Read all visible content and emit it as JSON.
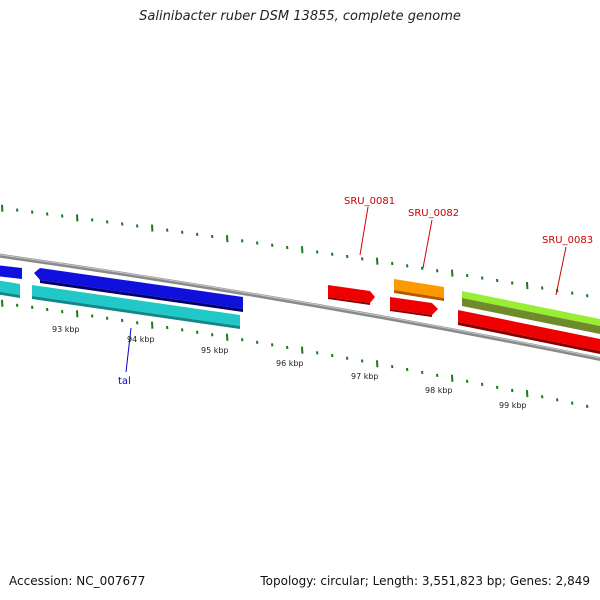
{
  "title": "Salinibacter ruber DSM 13855, complete genome",
  "footer": {
    "accession": "Accession: NC_007677",
    "summary": "Topology: circular; Length: 3,551,823 bp; Genes: 2,849"
  },
  "scale_labels": [
    "93 kbp",
    "94 kbp",
    "95 kbp",
    "96 kbp",
    "97 kbp",
    "98 kbp",
    "99 kbp"
  ],
  "gene_labels": [
    {
      "text": "SRU_0081",
      "color": "#cc0000"
    },
    {
      "text": "SRU_0082",
      "color": "#cc0000"
    },
    {
      "text": "SRU_0083",
      "color": "#cc0000"
    },
    {
      "text": "tal",
      "color": "#0000cc"
    }
  ],
  "colors": {
    "backbone": "#8a8a8a",
    "tick": "#1a7a1a",
    "blue_gene": "#1010dd",
    "cyan_gene": "#22c8c8",
    "red_gene": "#ee0000",
    "orange_gene": "#ff9900",
    "lime_gene": "#99ee33",
    "olive_gene": "#6f8a2a"
  }
}
